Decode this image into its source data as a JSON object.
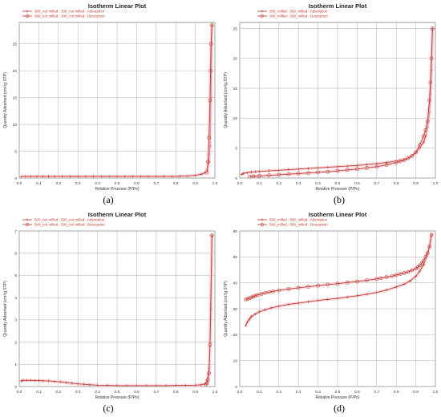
{
  "chart_data": [
    {
      "id": "a",
      "panel_label": "(a)",
      "type": "line",
      "title": "Isotherm Linear Plot",
      "xlabel": "Relative Pressure (P/Po)",
      "ylabel": "Quantity Adsorbed (cm³/g STP)",
      "xlim": [
        0,
        1.0
      ],
      "ylim": [
        0,
        29
      ],
      "xticks": [
        0.0,
        0.1,
        0.2,
        0.3,
        0.4,
        0.5,
        0.6,
        0.7,
        0.8,
        0.9,
        1.0
      ],
      "xtick_labels": [
        "0.0",
        "0.1",
        "0.2",
        "0.3",
        "0.4",
        "0.5",
        "0.6",
        "0.7",
        "0.8",
        "0.9",
        "1.0"
      ],
      "yticks": [
        0,
        5,
        10,
        15,
        20,
        25
      ],
      "ytick_labels": [
        "0",
        "5",
        "10",
        "15",
        "20",
        "25"
      ],
      "grid": true,
      "legend_position": "top-left",
      "series": [
        {
          "name": "300_not milled : 300_not milled : Adsorption",
          "marker": "plus",
          "color": "#c0392b",
          "x": [
            0.01,
            0.03,
            0.06,
            0.09,
            0.12,
            0.15,
            0.18,
            0.22,
            0.26,
            0.3,
            0.34,
            0.38,
            0.42,
            0.46,
            0.5,
            0.54,
            0.58,
            0.62,
            0.66,
            0.7,
            0.74,
            0.78,
            0.82,
            0.86,
            0.9,
            0.93,
            0.95,
            0.96,
            0.97,
            0.975,
            0.98,
            0.985
          ],
          "y": [
            0.25,
            0.3,
            0.3,
            0.3,
            0.3,
            0.3,
            0.3,
            0.3,
            0.3,
            0.3,
            0.3,
            0.3,
            0.3,
            0.3,
            0.3,
            0.3,
            0.3,
            0.3,
            0.3,
            0.3,
            0.3,
            0.3,
            0.35,
            0.4,
            0.5,
            0.7,
            1.0,
            1.6,
            3.0,
            6.0,
            15.0,
            28.5
          ]
        },
        {
          "name": "300_not milled : 300_not milled : Desorption",
          "marker": "circle",
          "color": "#c0392b",
          "x": [
            0.985,
            0.98,
            0.978,
            0.975,
            0.97,
            0.965,
            0.96
          ],
          "y": [
            28.5,
            25.0,
            20.0,
            14.5,
            7.5,
            3.0,
            1.0
          ]
        }
      ]
    },
    {
      "id": "b",
      "panel_label": "(b)",
      "type": "line",
      "title": "Isotherm Linear Plot",
      "xlabel": "Relative Pressure (P/Po)",
      "ylabel": "Quantity Adsorbed (cm³/g STP)",
      "xlim": [
        0,
        1.0
      ],
      "ylim": [
        0,
        26
      ],
      "xticks": [
        0.0,
        0.1,
        0.2,
        0.3,
        0.4,
        0.5,
        0.6,
        0.7,
        0.8,
        0.9,
        1.0
      ],
      "xtick_labels": [
        "0.0",
        "0.1",
        "0.2",
        "0.3",
        "0.4",
        "0.5",
        "0.6",
        "0.7",
        "0.8",
        "0.9",
        "1.0"
      ],
      "yticks": [
        0,
        5,
        10,
        15,
        20,
        25
      ],
      "ytick_labels": [
        "0",
        "5",
        "10",
        "15",
        "20",
        "25"
      ],
      "grid": true,
      "legend_position": "top",
      "series": [
        {
          "name": "300_milled : 300_milled : Adsorption",
          "marker": "plus",
          "color": "#c0392b",
          "x": [
            0.01,
            0.02,
            0.04,
            0.06,
            0.08,
            0.1,
            0.15,
            0.2,
            0.25,
            0.3,
            0.35,
            0.4,
            0.45,
            0.5,
            0.55,
            0.6,
            0.65,
            0.7,
            0.75,
            0.8,
            0.84,
            0.87,
            0.9,
            0.92,
            0.94,
            0.95,
            0.96,
            0.97,
            0.975,
            0.98,
            0.985
          ],
          "y": [
            0.6,
            0.8,
            0.9,
            1.0,
            1.05,
            1.1,
            1.2,
            1.3,
            1.4,
            1.5,
            1.6,
            1.7,
            1.8,
            1.9,
            2.0,
            2.1,
            2.25,
            2.4,
            2.6,
            2.85,
            3.1,
            3.5,
            4.2,
            5.0,
            6.0,
            7.0,
            8.5,
            11.0,
            14.0,
            18.0,
            25.0
          ]
        },
        {
          "name": "300_milled : 300_milled : Desorption",
          "marker": "circle",
          "color": "#c0392b",
          "x": [
            0.985,
            0.98,
            0.975,
            0.97,
            0.96,
            0.95,
            0.94,
            0.92,
            0.9,
            0.88,
            0.86,
            0.84,
            0.82,
            0.8,
            0.75,
            0.7,
            0.65,
            0.6,
            0.55,
            0.5,
            0.45,
            0.4,
            0.35,
            0.3,
            0.25,
            0.2,
            0.15,
            0.1,
            0.07,
            0.05
          ],
          "y": [
            25.0,
            20.0,
            16.0,
            13.0,
            9.5,
            8.0,
            7.0,
            5.5,
            4.3,
            3.7,
            3.3,
            3.0,
            2.8,
            2.6,
            2.2,
            1.9,
            1.7,
            1.5,
            1.35,
            1.2,
            1.05,
            0.95,
            0.85,
            0.75,
            0.65,
            0.55,
            0.45,
            0.35,
            0.3,
            0.25
          ]
        }
      ]
    },
    {
      "id": "c",
      "panel_label": "(c)",
      "type": "line",
      "title": "Isotherm Linear Plot",
      "xlabel": "Relative Pressure (P/Po)",
      "ylabel": "Quantity Adsorbed (cm³/g STP)",
      "xlim": [
        0,
        1.0
      ],
      "ylim": [
        0,
        7
      ],
      "xticks": [
        0.0,
        0.1,
        0.2,
        0.3,
        0.4,
        0.5,
        0.6,
        0.7,
        0.8,
        0.9,
        1.0
      ],
      "xtick_labels": [
        "0.0",
        "0.1",
        "0.2",
        "0.3",
        "0.4",
        "0.5",
        "0.6",
        "0.7",
        "0.8",
        "0.9",
        "1.0"
      ],
      "yticks": [
        0,
        1,
        2,
        3,
        4,
        5,
        6,
        7
      ],
      "ytick_labels": [
        "0",
        "1",
        "2",
        "3",
        "4",
        "5",
        "6",
        "7"
      ],
      "grid": true,
      "legend_position": "top-left",
      "series": [
        {
          "name": "500_not milled : 500_not milled : Adsorption",
          "marker": "plus",
          "color": "#c0392b",
          "x": [
            0.01,
            0.02,
            0.04,
            0.06,
            0.08,
            0.1,
            0.12,
            0.15,
            0.18,
            0.21,
            0.24,
            0.27,
            0.3,
            0.33,
            0.36,
            0.4,
            0.45,
            0.5,
            0.55,
            0.6,
            0.65,
            0.7,
            0.75,
            0.8,
            0.85,
            0.9,
            0.93,
            0.95,
            0.96,
            0.97,
            0.975,
            0.98,
            0.985
          ],
          "y": [
            0.25,
            0.28,
            0.28,
            0.28,
            0.27,
            0.27,
            0.26,
            0.25,
            0.23,
            0.21,
            0.18,
            0.15,
            0.12,
            0.1,
            0.08,
            0.06,
            0.05,
            0.04,
            0.04,
            0.04,
            0.04,
            0.04,
            0.04,
            0.05,
            0.05,
            0.06,
            0.08,
            0.12,
            0.3,
            0.8,
            1.8,
            3.5,
            6.8
          ]
        },
        {
          "name": "500_not milled : 500_not milled : Desorption",
          "marker": "circle",
          "color": "#c0392b",
          "x": [
            0.985,
            0.975,
            0.97,
            0.965,
            0.96,
            0.955
          ],
          "y": [
            6.8,
            1.9,
            0.6,
            0.3,
            0.15,
            0.1
          ]
        }
      ]
    },
    {
      "id": "d",
      "panel_label": "(d)",
      "type": "line",
      "title": "Isotherm Linear Plot",
      "xlabel": "Relative Pressure (P/Po)",
      "ylabel": "Quantity Adsorbed (cm³/g STP)",
      "xlim": [
        0,
        1.0
      ],
      "ylim": [
        0,
        60
      ],
      "xticks": [
        0.0,
        0.1,
        0.2,
        0.3,
        0.4,
        0.5,
        0.6,
        0.7,
        0.8,
        0.9,
        1.0
      ],
      "xtick_labels": [
        "0.0",
        "0.1",
        "0.2",
        "0.3",
        "0.4",
        "0.5",
        "0.6",
        "0.7",
        "0.8",
        "0.9",
        "1.0"
      ],
      "yticks": [
        0,
        10,
        20,
        30,
        40,
        50,
        60
      ],
      "ytick_labels": [
        "0",
        "10",
        "20",
        "30",
        "40",
        "50",
        "60"
      ],
      "grid": true,
      "legend_position": "top",
      "series": [
        {
          "name": "500_milled : 500_milled : Adsorption",
          "marker": "plus",
          "color": "#c0392b",
          "x": [
            0.03,
            0.04,
            0.05,
            0.06,
            0.08,
            0.1,
            0.13,
            0.16,
            0.2,
            0.25,
            0.3,
            0.35,
            0.4,
            0.45,
            0.5,
            0.55,
            0.6,
            0.65,
            0.7,
            0.75,
            0.8,
            0.84,
            0.87,
            0.9,
            0.92,
            0.94,
            0.96,
            0.97,
            0.98
          ],
          "y": [
            23.5,
            25.0,
            26.0,
            27.0,
            28.0,
            28.8,
            29.6,
            30.3,
            31.0,
            31.7,
            32.2,
            32.7,
            33.2,
            33.6,
            34.0,
            34.5,
            35.0,
            35.6,
            36.3,
            37.2,
            38.4,
            39.5,
            40.7,
            42.5,
            44.5,
            47.0,
            51.0,
            54.0,
            58.5
          ]
        },
        {
          "name": "500_milled : 500_milled : Desorption",
          "marker": "circle",
          "color": "#c0392b",
          "x": [
            0.98,
            0.97,
            0.96,
            0.95,
            0.94,
            0.93,
            0.92,
            0.91,
            0.9,
            0.88,
            0.86,
            0.84,
            0.82,
            0.8,
            0.78,
            0.75,
            0.72,
            0.7,
            0.65,
            0.6,
            0.55,
            0.5,
            0.45,
            0.4,
            0.35,
            0.3,
            0.25,
            0.2,
            0.17,
            0.15,
            0.13,
            0.11,
            0.09,
            0.08,
            0.07,
            0.06,
            0.05,
            0.04,
            0.03
          ],
          "y": [
            58.5,
            54.0,
            51.5,
            50.0,
            48.5,
            47.5,
            46.7,
            46.0,
            45.5,
            44.8,
            44.2,
            43.8,
            43.4,
            43.0,
            42.6,
            42.2,
            41.8,
            41.5,
            41.0,
            40.5,
            40.1,
            39.7,
            39.3,
            38.9,
            38.5,
            38.1,
            37.6,
            37.1,
            36.7,
            36.4,
            36.1,
            35.7,
            35.3,
            35.0,
            34.7,
            34.4,
            34.1,
            33.8,
            33.5
          ]
        }
      ]
    }
  ]
}
